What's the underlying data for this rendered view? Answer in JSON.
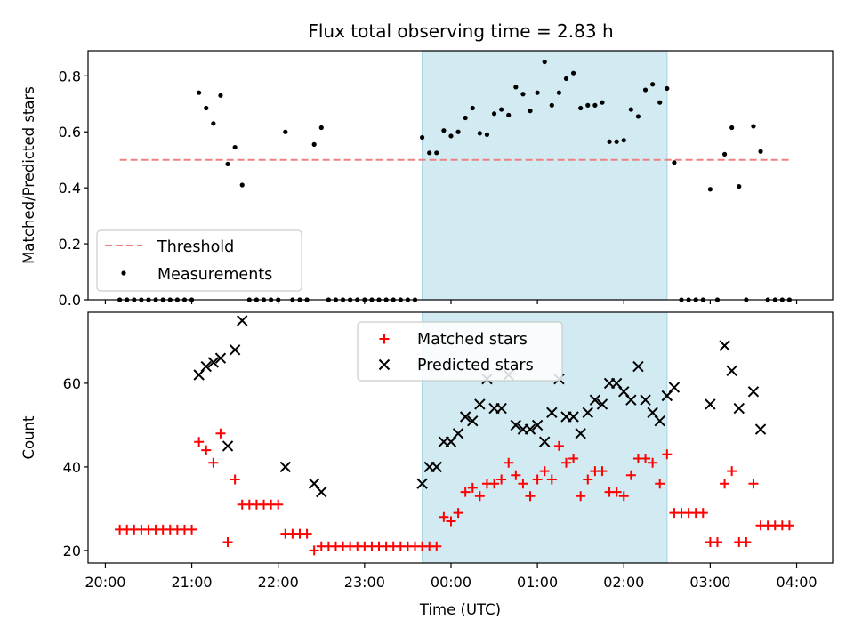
{
  "title": "Flux total observing time = 2.83 h",
  "colors": {
    "threshold": "#f08080",
    "matched": "#ff0000",
    "predicted": "#000000",
    "measurement": "#000000",
    "shade": "#add8e6"
  },
  "chart_data": [
    {
      "type": "scatter",
      "ylabel": "Matched/Predicted stars",
      "ylim": [
        0,
        0.89
      ],
      "yticks": [
        "0.0",
        "0.2",
        "0.4",
        "0.6",
        "0.8"
      ],
      "ytick_values": [
        0,
        0.2,
        0.4,
        0.6,
        0.8
      ],
      "xlim": [
        "19:48",
        "04:25"
      ],
      "shaded_region": [
        "23:40",
        "02:30"
      ],
      "threshold": {
        "name": "Threshold",
        "value": 0.5,
        "x_start": "20:10",
        "x_end": "03:55"
      },
      "legend": {
        "position": "lower-left",
        "entries": [
          "Threshold",
          "Measurements"
        ]
      },
      "series": [
        {
          "name": "Measurements",
          "points": [
            [
              "20:10",
              0
            ],
            [
              "20:15",
              0
            ],
            [
              "20:20",
              0
            ],
            [
              "20:25",
              0
            ],
            [
              "20:30",
              0
            ],
            [
              "20:35",
              0
            ],
            [
              "20:40",
              0
            ],
            [
              "20:45",
              0
            ],
            [
              "20:50",
              0
            ],
            [
              "20:55",
              0
            ],
            [
              "21:00",
              0
            ],
            [
              "21:05",
              0.74
            ],
            [
              "21:10",
              0.685
            ],
            [
              "21:15",
              0.63
            ],
            [
              "21:20",
              0.73
            ],
            [
              "21:25",
              0.485
            ],
            [
              "21:30",
              0.545
            ],
            [
              "21:35",
              0.41
            ],
            [
              "21:40",
              0
            ],
            [
              "21:45",
              0
            ],
            [
              "21:50",
              0
            ],
            [
              "21:55",
              0
            ],
            [
              "22:00",
              0
            ],
            [
              "22:05",
              0.6
            ],
            [
              "22:10",
              0
            ],
            [
              "22:15",
              0
            ],
            [
              "22:20",
              0
            ],
            [
              "22:25",
              0.555
            ],
            [
              "22:30",
              0.615
            ],
            [
              "22:35",
              0
            ],
            [
              "22:40",
              0
            ],
            [
              "22:45",
              0
            ],
            [
              "22:50",
              0
            ],
            [
              "22:55",
              0
            ],
            [
              "23:00",
              0
            ],
            [
              "23:05",
              0
            ],
            [
              "23:10",
              0
            ],
            [
              "23:15",
              0
            ],
            [
              "23:20",
              0
            ],
            [
              "23:25",
              0
            ],
            [
              "23:30",
              0
            ],
            [
              "23:35",
              0
            ],
            [
              "23:40",
              0.58
            ],
            [
              "23:45",
              0.525
            ],
            [
              "23:50",
              0.525
            ],
            [
              "23:55",
              0.605
            ],
            [
              "00:00",
              0.585
            ],
            [
              "00:05",
              0.6
            ],
            [
              "00:10",
              0.65
            ],
            [
              "00:15",
              0.685
            ],
            [
              "00:20",
              0.595
            ],
            [
              "00:25",
              0.59
            ],
            [
              "00:30",
              0.665
            ],
            [
              "00:35",
              0.68
            ],
            [
              "00:40",
              0.66
            ],
            [
              "00:45",
              0.76
            ],
            [
              "00:50",
              0.735
            ],
            [
              "00:55",
              0.675
            ],
            [
              "01:00",
              0.74
            ],
            [
              "01:05",
              0.85
            ],
            [
              "01:10",
              0.695
            ],
            [
              "01:15",
              0.74
            ],
            [
              "01:20",
              0.79
            ],
            [
              "01:25",
              0.81
            ],
            [
              "01:30",
              0.685
            ],
            [
              "01:35",
              0.695
            ],
            [
              "01:40",
              0.695
            ],
            [
              "01:45",
              0.705
            ],
            [
              "01:50",
              0.565
            ],
            [
              "01:55",
              0.565
            ],
            [
              "02:00",
              0.57
            ],
            [
              "02:05",
              0.68
            ],
            [
              "02:10",
              0.655
            ],
            [
              "02:15",
              0.75
            ],
            [
              "02:20",
              0.77
            ],
            [
              "02:25",
              0.705
            ],
            [
              "02:30",
              0.755
            ],
            [
              "02:35",
              0.49
            ],
            [
              "02:40",
              0
            ],
            [
              "02:45",
              0
            ],
            [
              "02:50",
              0
            ],
            [
              "02:55",
              0
            ],
            [
              "03:00",
              0.395
            ],
            [
              "03:05",
              0
            ],
            [
              "03:10",
              0.52
            ],
            [
              "03:15",
              0.615
            ],
            [
              "03:20",
              0.405
            ],
            [
              "03:25",
              0
            ],
            [
              "03:30",
              0.62
            ],
            [
              "03:35",
              0.53
            ],
            [
              "03:40",
              0
            ],
            [
              "03:45",
              0
            ],
            [
              "03:50",
              0
            ],
            [
              "03:55",
              0
            ]
          ]
        }
      ]
    },
    {
      "type": "scatter",
      "ylabel": "Count",
      "xlabel": "Time (UTC)",
      "ylim": [
        17,
        77
      ],
      "yticks": [
        "20",
        "40",
        "60"
      ],
      "ytick_values": [
        20,
        40,
        60
      ],
      "xlim": [
        "19:48",
        "04:25"
      ],
      "xticks": [
        "20:00",
        "21:00",
        "22:00",
        "23:00",
        "00:00",
        "01:00",
        "02:00",
        "03:00",
        "04:00"
      ],
      "shaded_region": [
        "23:40",
        "02:30"
      ],
      "legend": {
        "position": "upper-center",
        "entries": [
          "Matched stars",
          "Predicted stars"
        ]
      },
      "series": [
        {
          "name": "Matched stars",
          "marker": "plus",
          "points": [
            [
              "20:10",
              25
            ],
            [
              "20:15",
              25
            ],
            [
              "20:20",
              25
            ],
            [
              "20:25",
              25
            ],
            [
              "20:30",
              25
            ],
            [
              "20:35",
              25
            ],
            [
              "20:40",
              25
            ],
            [
              "20:45",
              25
            ],
            [
              "20:50",
              25
            ],
            [
              "20:55",
              25
            ],
            [
              "21:00",
              25
            ],
            [
              "21:05",
              46
            ],
            [
              "21:10",
              44
            ],
            [
              "21:15",
              41
            ],
            [
              "21:20",
              48
            ],
            [
              "21:25",
              22
            ],
            [
              "21:30",
              37
            ],
            [
              "21:35",
              31
            ],
            [
              "21:40",
              31
            ],
            [
              "21:45",
              31
            ],
            [
              "21:50",
              31
            ],
            [
              "21:55",
              31
            ],
            [
              "22:00",
              31
            ],
            [
              "22:05",
              24
            ],
            [
              "22:10",
              24
            ],
            [
              "22:15",
              24
            ],
            [
              "22:20",
              24
            ],
            [
              "22:25",
              20
            ],
            [
              "22:30",
              21
            ],
            [
              "22:35",
              21
            ],
            [
              "22:40",
              21
            ],
            [
              "22:45",
              21
            ],
            [
              "22:50",
              21
            ],
            [
              "22:55",
              21
            ],
            [
              "23:00",
              21
            ],
            [
              "23:05",
              21
            ],
            [
              "23:10",
              21
            ],
            [
              "23:15",
              21
            ],
            [
              "23:20",
              21
            ],
            [
              "23:25",
              21
            ],
            [
              "23:30",
              21
            ],
            [
              "23:35",
              21
            ],
            [
              "23:40",
              21
            ],
            [
              "23:45",
              21
            ],
            [
              "23:50",
              21
            ],
            [
              "23:55",
              28
            ],
            [
              "00:00",
              27
            ],
            [
              "00:05",
              29
            ],
            [
              "00:10",
              34
            ],
            [
              "00:15",
              35
            ],
            [
              "00:20",
              33
            ],
            [
              "00:25",
              36
            ],
            [
              "00:30",
              36
            ],
            [
              "00:35",
              37
            ],
            [
              "00:40",
              41
            ],
            [
              "00:45",
              38
            ],
            [
              "00:50",
              36
            ],
            [
              "00:55",
              33
            ],
            [
              "01:00",
              37
            ],
            [
              "01:05",
              39
            ],
            [
              "01:10",
              37
            ],
            [
              "01:15",
              45
            ],
            [
              "01:20",
              41
            ],
            [
              "01:25",
              42
            ],
            [
              "01:30",
              33
            ],
            [
              "01:35",
              37
            ],
            [
              "01:40",
              39
            ],
            [
              "01:45",
              39
            ],
            [
              "01:50",
              34
            ],
            [
              "01:55",
              34
            ],
            [
              "02:00",
              33
            ],
            [
              "02:05",
              38
            ],
            [
              "02:10",
              42
            ],
            [
              "02:15",
              42
            ],
            [
              "02:20",
              41
            ],
            [
              "02:25",
              36
            ],
            [
              "02:30",
              43
            ],
            [
              "02:35",
              29
            ],
            [
              "02:40",
              29
            ],
            [
              "02:45",
              29
            ],
            [
              "02:50",
              29
            ],
            [
              "02:55",
              29
            ],
            [
              "03:00",
              22
            ],
            [
              "03:05",
              22
            ],
            [
              "03:10",
              36
            ],
            [
              "03:15",
              39
            ],
            [
              "03:20",
              22
            ],
            [
              "03:25",
              22
            ],
            [
              "03:30",
              36
            ],
            [
              "03:35",
              26
            ],
            [
              "03:40",
              26
            ],
            [
              "03:45",
              26
            ],
            [
              "03:50",
              26
            ],
            [
              "03:55",
              26
            ]
          ]
        },
        {
          "name": "Predicted stars",
          "marker": "x",
          "points": [
            [
              "21:05",
              62
            ],
            [
              "21:10",
              64
            ],
            [
              "21:15",
              65
            ],
            [
              "21:20",
              66
            ],
            [
              "21:25",
              45
            ],
            [
              "21:30",
              68
            ],
            [
              "21:35",
              75
            ],
            [
              "22:05",
              40
            ],
            [
              "22:25",
              36
            ],
            [
              "22:30",
              34
            ],
            [
              "23:40",
              36
            ],
            [
              "23:45",
              40
            ],
            [
              "23:50",
              40
            ],
            [
              "23:55",
              46
            ],
            [
              "00:00",
              46
            ],
            [
              "00:05",
              48
            ],
            [
              "00:10",
              52
            ],
            [
              "00:15",
              51
            ],
            [
              "00:20",
              55
            ],
            [
              "00:25",
              61
            ],
            [
              "00:30",
              54
            ],
            [
              "00:35",
              54
            ],
            [
              "00:40",
              62
            ],
            [
              "00:45",
              50
            ],
            [
              "00:50",
              49
            ],
            [
              "00:55",
              49
            ],
            [
              "01:00",
              50
            ],
            [
              "01:05",
              46
            ],
            [
              "01:10",
              53
            ],
            [
              "01:15",
              61
            ],
            [
              "01:20",
              52
            ],
            [
              "01:25",
              52
            ],
            [
              "01:30",
              48
            ],
            [
              "01:35",
              53
            ],
            [
              "01:40",
              56
            ],
            [
              "01:45",
              55
            ],
            [
              "01:50",
              60
            ],
            [
              "01:55",
              60
            ],
            [
              "02:00",
              58
            ],
            [
              "02:05",
              56
            ],
            [
              "02:10",
              64
            ],
            [
              "02:15",
              56
            ],
            [
              "02:20",
              53
            ],
            [
              "02:25",
              51
            ],
            [
              "02:30",
              57
            ],
            [
              "02:35",
              59
            ],
            [
              "03:00",
              55
            ],
            [
              "03:10",
              69
            ],
            [
              "03:15",
              63
            ],
            [
              "03:20",
              54
            ],
            [
              "03:30",
              58
            ],
            [
              "03:35",
              49
            ]
          ]
        }
      ]
    }
  ]
}
